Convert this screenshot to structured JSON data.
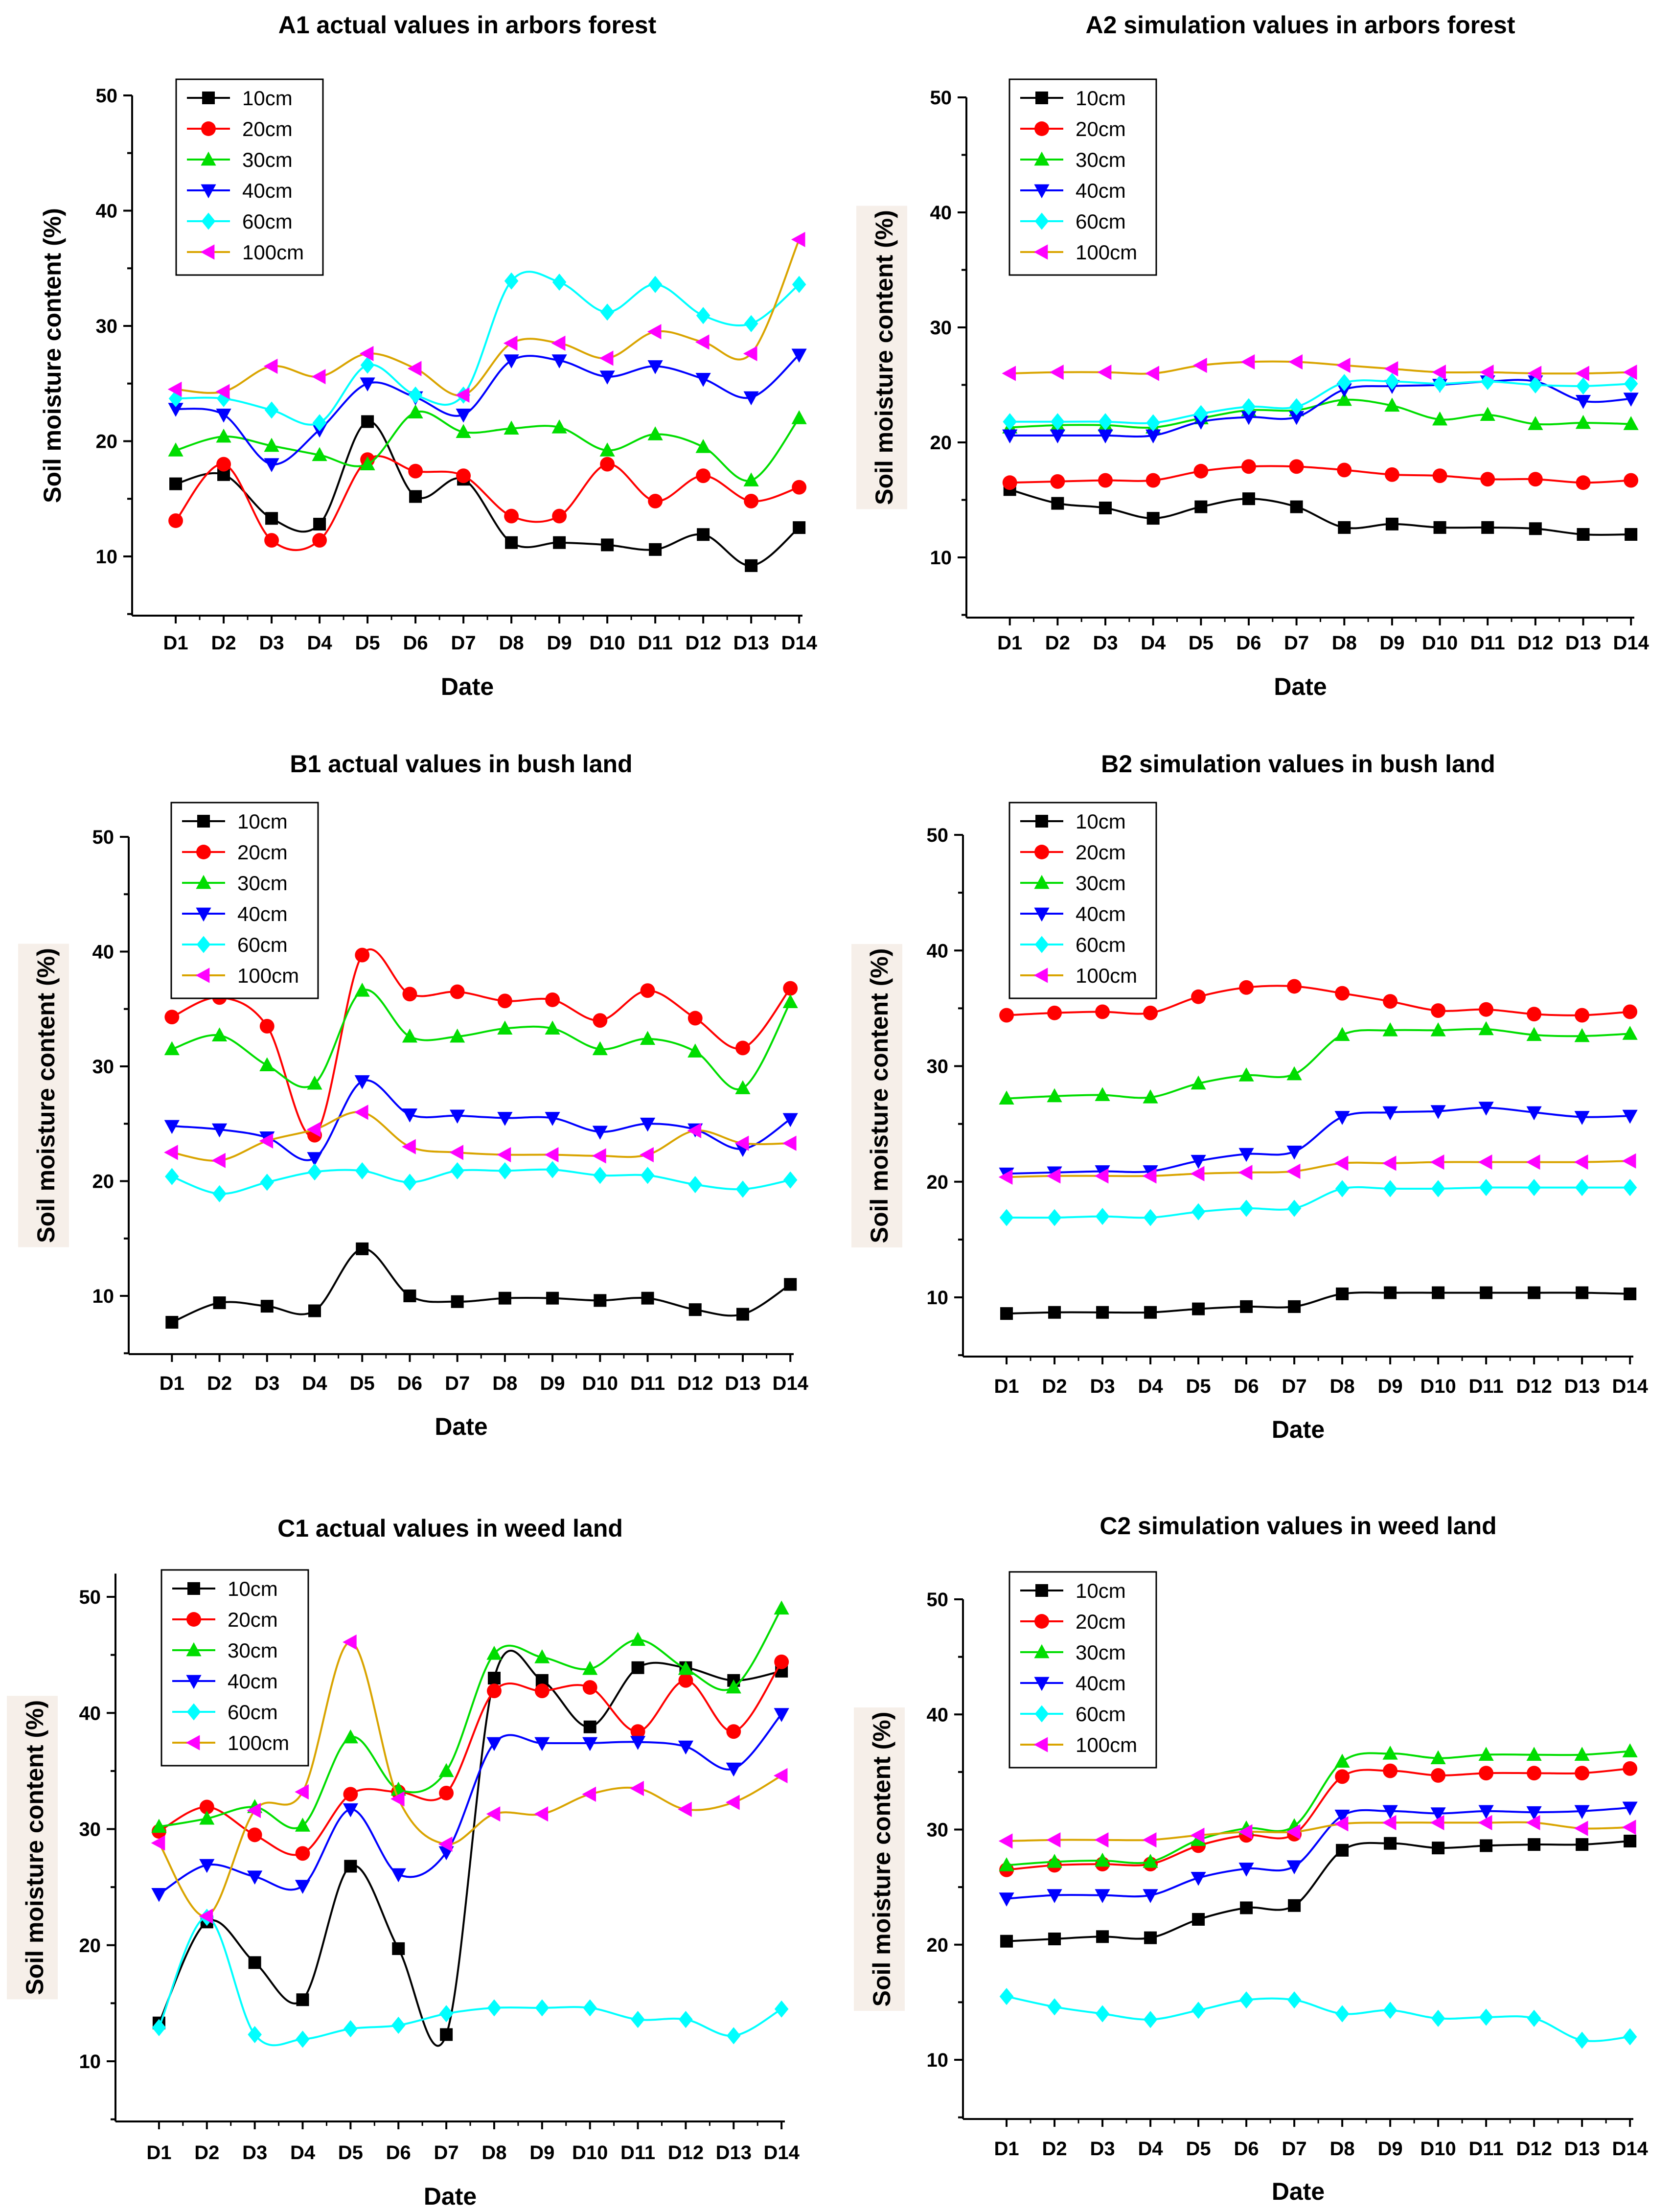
{
  "chart_data": [
    {
      "id": "A1",
      "type": "line",
      "title": "A1  actual  values in arbors forest",
      "xlabel": "Date",
      "ylabel": "Soil moisture content (%)",
      "ylim": [
        5,
        50
      ],
      "yticks": [
        10,
        20,
        30,
        40,
        50
      ],
      "categories": [
        "D1",
        "D2",
        "D3",
        "D4",
        "D5",
        "D6",
        "D7",
        "D8",
        "D9",
        "D10",
        "D11",
        "D12",
        "D13",
        "D14"
      ],
      "legend_position": "top-left",
      "series": [
        {
          "name": "10cm",
          "color": "#000000",
          "marker": "square",
          "values": [
            16.3,
            17.1,
            13.3,
            12.8,
            21.7,
            15.2,
            16.7,
            11.2,
            11.2,
            11.0,
            10.6,
            11.9,
            9.2,
            12.5
          ]
        },
        {
          "name": "20cm",
          "color": "#ff0000",
          "marker": "circle",
          "values": [
            13.1,
            18.0,
            11.4,
            11.4,
            18.4,
            17.4,
            17.0,
            13.5,
            13.5,
            18.0,
            14.8,
            17.0,
            14.8,
            16.0
          ]
        },
        {
          "name": "30cm",
          "color": "#00dd00",
          "marker": "triangle-up",
          "values": [
            19.2,
            20.4,
            19.6,
            18.8,
            18.0,
            22.5,
            20.8,
            21.1,
            21.2,
            19.2,
            20.6,
            19.5,
            16.6,
            22.0
          ]
        },
        {
          "name": "40cm",
          "color": "#0000ff",
          "marker": "triangle-down",
          "values": [
            22.8,
            22.3,
            18.0,
            21.0,
            25.0,
            23.8,
            22.3,
            27.0,
            27.0,
            25.6,
            26.5,
            25.4,
            23.8,
            27.5
          ]
        },
        {
          "name": "60cm",
          "color": "#00ffff",
          "marker": "diamond",
          "values": [
            23.7,
            23.7,
            22.7,
            21.6,
            26.6,
            24.0,
            24.0,
            33.9,
            33.8,
            31.2,
            33.6,
            30.9,
            30.2,
            33.6
          ]
        },
        {
          "name": "100cm",
          "color": "#ff00ff",
          "line_color": "#d9a400",
          "marker": "triangle-left",
          "values": [
            24.5,
            24.3,
            26.5,
            25.6,
            27.6,
            26.3,
            24.0,
            28.5,
            28.5,
            27.2,
            29.5,
            28.6,
            27.6,
            37.5
          ]
        }
      ]
    },
    {
      "id": "A2",
      "type": "line",
      "title": "A2  simulation values  in arbors forest",
      "xlabel": "Date",
      "ylabel": "Soil moisture content (%)",
      "ylim": [
        5,
        50
      ],
      "yticks": [
        10,
        20,
        30,
        40,
        50
      ],
      "categories": [
        "D1",
        "D2",
        "D3",
        "D4",
        "D5",
        "D6",
        "D7",
        "D8",
        "D9",
        "D10",
        "D11",
        "D12",
        "D13",
        "D14"
      ],
      "legend_position": "top-left",
      "series": [
        {
          "name": "10cm",
          "color": "#000000",
          "marker": "square",
          "values": [
            15.9,
            14.7,
            14.3,
            13.4,
            14.4,
            15.1,
            14.4,
            12.6,
            12.9,
            12.6,
            12.6,
            12.5,
            12.0,
            12.0
          ]
        },
        {
          "name": "20cm",
          "color": "#ff0000",
          "marker": "circle",
          "values": [
            16.5,
            16.6,
            16.7,
            16.7,
            17.5,
            17.9,
            17.9,
            17.6,
            17.2,
            17.1,
            16.8,
            16.8,
            16.5,
            16.7
          ]
        },
        {
          "name": "30cm",
          "color": "#00dd00",
          "marker": "triangle-up",
          "values": [
            21.3,
            21.5,
            21.5,
            21.3,
            22.1,
            22.8,
            22.8,
            23.7,
            23.2,
            22.0,
            22.4,
            21.6,
            21.7,
            21.6
          ]
        },
        {
          "name": "40cm",
          "color": "#0000ff",
          "marker": "triangle-down",
          "values": [
            20.6,
            20.6,
            20.6,
            20.6,
            21.8,
            22.2,
            22.2,
            24.6,
            24.9,
            25.0,
            25.3,
            25.3,
            23.6,
            23.8
          ]
        },
        {
          "name": "60cm",
          "color": "#00ffff",
          "marker": "diamond",
          "values": [
            21.8,
            21.8,
            21.8,
            21.7,
            22.5,
            23.1,
            23.1,
            25.2,
            25.3,
            25.1,
            25.3,
            25.0,
            24.9,
            25.1
          ]
        },
        {
          "name": "100cm",
          "color": "#ff00ff",
          "line_color": "#d9a400",
          "marker": "triangle-left",
          "values": [
            26.0,
            26.1,
            26.1,
            26.0,
            26.7,
            27.0,
            27.0,
            26.7,
            26.4,
            26.1,
            26.1,
            26.0,
            26.0,
            26.1
          ]
        }
      ]
    },
    {
      "id": "B1",
      "type": "line",
      "title": "B1  actual  values in bush land",
      "xlabel": "Date",
      "ylabel": "Soil moisture content (%)",
      "ylim": [
        5,
        50
      ],
      "yticks": [
        10,
        20,
        30,
        40,
        50
      ],
      "categories": [
        "D1",
        "D2",
        "D3",
        "D4",
        "D5",
        "D6",
        "D7",
        "D8",
        "D9",
        "D10",
        "D11",
        "D12",
        "D13",
        "D14"
      ],
      "legend_position": "top-left",
      "series": [
        {
          "name": "10cm",
          "color": "#000000",
          "marker": "square",
          "values": [
            7.7,
            9.4,
            9.1,
            8.7,
            14.1,
            10.0,
            9.5,
            9.8,
            9.8,
            9.6,
            9.8,
            8.8,
            8.4,
            11.0
          ]
        },
        {
          "name": "20cm",
          "color": "#ff0000",
          "marker": "circle",
          "values": [
            34.3,
            36.0,
            33.5,
            24.0,
            39.7,
            36.3,
            36.5,
            35.7,
            35.8,
            34.0,
            36.6,
            34.2,
            31.6,
            36.8
          ]
        },
        {
          "name": "30cm",
          "color": "#00dd00",
          "marker": "triangle-up",
          "values": [
            31.5,
            32.7,
            30.1,
            28.5,
            36.6,
            32.6,
            32.6,
            33.3,
            33.3,
            31.5,
            32.4,
            31.3,
            28.1,
            35.6
          ]
        },
        {
          "name": "40cm",
          "color": "#0000ff",
          "marker": "triangle-down",
          "values": [
            24.8,
            24.5,
            23.8,
            22.0,
            28.7,
            25.8,
            25.7,
            25.5,
            25.5,
            24.3,
            25.0,
            24.5,
            22.8,
            25.4
          ]
        },
        {
          "name": "60cm",
          "color": "#00ffff",
          "marker": "diamond",
          "values": [
            20.4,
            18.9,
            19.9,
            20.8,
            20.9,
            19.9,
            20.9,
            20.9,
            21.0,
            20.5,
            20.5,
            19.7,
            19.3,
            20.1
          ]
        },
        {
          "name": "100cm",
          "color": "#ff00ff",
          "line_color": "#d9a400",
          "marker": "triangle-left",
          "values": [
            22.5,
            21.8,
            23.5,
            24.5,
            26.0,
            23.0,
            22.5,
            22.3,
            22.3,
            22.2,
            22.3,
            24.4,
            23.3,
            23.3
          ]
        }
      ]
    },
    {
      "id": "B2",
      "type": "line",
      "title": "B2  simulation values  in bush land",
      "xlabel": "Date",
      "ylabel": "Soil moisture content (%)",
      "ylim": [
        5,
        50
      ],
      "yticks": [
        10,
        20,
        30,
        40,
        50
      ],
      "categories": [
        "D1",
        "D2",
        "D3",
        "D4",
        "D5",
        "D6",
        "D7",
        "D8",
        "D9",
        "D10",
        "D11",
        "D12",
        "D13",
        "D14"
      ],
      "legend_position": "top-left",
      "series": [
        {
          "name": "10cm",
          "color": "#000000",
          "marker": "square",
          "values": [
            8.6,
            8.7,
            8.7,
            8.7,
            9.0,
            9.2,
            9.2,
            10.3,
            10.4,
            10.4,
            10.4,
            10.4,
            10.4,
            10.3
          ]
        },
        {
          "name": "20cm",
          "color": "#ff0000",
          "marker": "circle",
          "values": [
            34.4,
            34.6,
            34.7,
            34.6,
            36.0,
            36.8,
            36.9,
            36.3,
            35.6,
            34.8,
            34.9,
            34.5,
            34.4,
            34.7
          ]
        },
        {
          "name": "30cm",
          "color": "#00dd00",
          "marker": "triangle-up",
          "values": [
            27.2,
            27.4,
            27.5,
            27.3,
            28.5,
            29.2,
            29.3,
            32.7,
            33.1,
            33.1,
            33.2,
            32.7,
            32.6,
            32.8
          ]
        },
        {
          "name": "40cm",
          "color": "#0000ff",
          "marker": "triangle-down",
          "values": [
            20.7,
            20.8,
            20.9,
            20.9,
            21.8,
            22.4,
            22.6,
            25.6,
            26.0,
            26.1,
            26.4,
            26.0,
            25.6,
            25.7
          ]
        },
        {
          "name": "60cm",
          "color": "#00ffff",
          "marker": "diamond",
          "values": [
            16.9,
            16.9,
            17.0,
            16.9,
            17.4,
            17.7,
            17.7,
            19.4,
            19.4,
            19.4,
            19.5,
            19.5,
            19.5,
            19.5
          ]
        },
        {
          "name": "100cm",
          "color": "#ff00ff",
          "line_color": "#d9a400",
          "marker": "triangle-left",
          "values": [
            20.4,
            20.5,
            20.5,
            20.5,
            20.7,
            20.8,
            20.9,
            21.6,
            21.6,
            21.7,
            21.7,
            21.7,
            21.7,
            21.8
          ]
        }
      ]
    },
    {
      "id": "C1",
      "type": "line",
      "title": "C1  actual  values in weed land",
      "xlabel": "Date",
      "ylabel": "Soil moisture content (%)",
      "ylim": [
        5,
        52
      ],
      "yticks": [
        10,
        20,
        30,
        40,
        50
      ],
      "categories": [
        "D1",
        "D2",
        "D3",
        "D4",
        "D5",
        "D6",
        "D7",
        "D8",
        "D9",
        "D10",
        "D11",
        "D12",
        "D13",
        "D14"
      ],
      "legend_position": "top-left",
      "series": [
        {
          "name": "10cm",
          "color": "#000000",
          "marker": "square",
          "values": [
            13.3,
            22.0,
            18.5,
            15.3,
            26.8,
            19.7,
            12.3,
            43.0,
            42.8,
            38.8,
            43.9,
            43.9,
            42.8,
            43.6
          ]
        },
        {
          "name": "20cm",
          "color": "#ff0000",
          "marker": "circle",
          "values": [
            29.8,
            31.9,
            29.5,
            27.9,
            33.0,
            33.2,
            33.1,
            41.9,
            41.9,
            42.2,
            38.4,
            42.8,
            38.4,
            44.4
          ]
        },
        {
          "name": "30cm",
          "color": "#00dd00",
          "marker": "triangle-up",
          "values": [
            30.2,
            30.9,
            31.9,
            30.3,
            37.9,
            33.4,
            35.0,
            45.1,
            44.8,
            43.8,
            46.3,
            43.8,
            42.2,
            49.0
          ]
        },
        {
          "name": "40cm",
          "color": "#0000ff",
          "marker": "triangle-down",
          "values": [
            24.4,
            26.9,
            25.9,
            25.1,
            31.7,
            26.1,
            28.0,
            37.4,
            37.4,
            37.4,
            37.5,
            37.1,
            35.2,
            39.9
          ]
        },
        {
          "name": "60cm",
          "color": "#00ffff",
          "marker": "diamond",
          "values": [
            12.9,
            22.4,
            12.3,
            11.9,
            12.8,
            13.1,
            14.1,
            14.6,
            14.6,
            14.6,
            13.6,
            13.6,
            12.2,
            14.5
          ]
        },
        {
          "name": "100cm",
          "color": "#ff00ff",
          "line_color": "#d9a400",
          "marker": "triangle-left",
          "values": [
            28.8,
            22.5,
            31.6,
            33.2,
            46.1,
            32.6,
            28.7,
            31.3,
            31.3,
            33.0,
            33.5,
            31.7,
            32.3,
            34.6
          ]
        }
      ]
    },
    {
      "id": "C2",
      "type": "line",
      "title": "C2  simulation values  in weed land",
      "xlabel": "Date",
      "ylabel": "Soil moisture content (%)",
      "ylim": [
        5,
        50
      ],
      "yticks": [
        10,
        20,
        30,
        40,
        50
      ],
      "categories": [
        "D1",
        "D2",
        "D3",
        "D4",
        "D5",
        "D6",
        "D7",
        "D8",
        "D9",
        "D10",
        "D11",
        "D12",
        "D13",
        "D14"
      ],
      "legend_position": "top-left",
      "series": [
        {
          "name": "10cm",
          "color": "#000000",
          "marker": "square",
          "values": [
            20.3,
            20.5,
            20.7,
            20.6,
            22.2,
            23.2,
            23.4,
            28.2,
            28.8,
            28.4,
            28.6,
            28.7,
            28.7,
            29.0
          ]
        },
        {
          "name": "20cm",
          "color": "#ff0000",
          "marker": "circle",
          "values": [
            26.5,
            26.9,
            27.0,
            27.0,
            28.6,
            29.5,
            29.6,
            34.6,
            35.1,
            34.7,
            34.9,
            34.9,
            34.9,
            35.3
          ]
        },
        {
          "name": "30cm",
          "color": "#00dd00",
          "marker": "triangle-up",
          "values": [
            26.9,
            27.2,
            27.3,
            27.2,
            29.1,
            30.1,
            30.3,
            35.9,
            36.6,
            36.2,
            36.5,
            36.5,
            36.5,
            36.8
          ]
        },
        {
          "name": "40cm",
          "color": "#0000ff",
          "marker": "triangle-down",
          "values": [
            24.0,
            24.3,
            24.3,
            24.3,
            25.8,
            26.6,
            26.8,
            31.2,
            31.6,
            31.4,
            31.6,
            31.5,
            31.6,
            31.9
          ]
        },
        {
          "name": "60cm",
          "color": "#00ffff",
          "marker": "diamond",
          "values": [
            15.5,
            14.6,
            14.0,
            13.5,
            14.3,
            15.2,
            15.2,
            14.0,
            14.3,
            13.6,
            13.7,
            13.6,
            11.7,
            12.0
          ]
        },
        {
          "name": "100cm",
          "color": "#ff00ff",
          "line_color": "#d9a400",
          "marker": "triangle-left",
          "values": [
            29.0,
            29.1,
            29.1,
            29.1,
            29.5,
            29.8,
            29.8,
            30.5,
            30.6,
            30.6,
            30.6,
            30.6,
            30.1,
            30.2
          ]
        }
      ]
    }
  ]
}
